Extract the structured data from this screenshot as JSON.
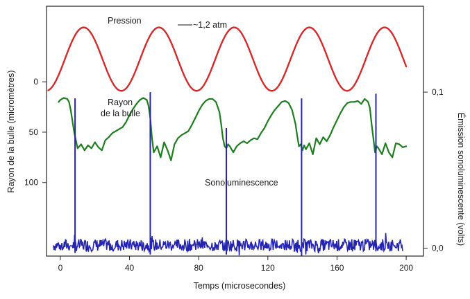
{
  "chart_data": {
    "type": "line",
    "title": "",
    "xlabel": "Temps (microsecondes)",
    "ylabel_left": "Rayon de la bulle (micromètres)",
    "ylabel_right": "Émission sonoluminescente (volts)",
    "x_ticks": [
      "0",
      "40",
      "80",
      "120",
      "160",
      "200"
    ],
    "y_left_ticks": [
      "0",
      "50",
      "100"
    ],
    "y_right_ticks": [
      "0,1",
      "0,0"
    ],
    "xlim": [
      -8,
      210
    ],
    "y_left_lim": [
      -75,
      173
    ],
    "y_right_lim": [
      -0.005,
      0.155
    ],
    "grid": false,
    "annotations": {
      "pressure_label": "Pression",
      "amplitude_label": "~1,2 atm",
      "radius_label_line1": "Rayon",
      "radius_label_line2": "de la bulle",
      "sono_label": "Sonoluminescence"
    },
    "series": [
      {
        "color": "#d42a2a",
        "period_us": 43.5,
        "x_start": -7,
        "x_end": 200,
        "peak_t": 13.5,
        "peak_left_units": -54,
        "trough_left_units": 9
      },
      {
        "color": "#1e7d1e",
        "x": [
          -1,
          0,
          2,
          4,
          5,
          6,
          8,
          10,
          12,
          14,
          16,
          18,
          20,
          22,
          24,
          26,
          28,
          30,
          32,
          34,
          36,
          38,
          40,
          42,
          44,
          46,
          48,
          50,
          51,
          52,
          53,
          54,
          56,
          58,
          60,
          62,
          64,
          66,
          68,
          70,
          72,
          74,
          76,
          78,
          80,
          82,
          84,
          86,
          88,
          90,
          92,
          93,
          94,
          95,
          96,
          97,
          98,
          100,
          102,
          104,
          106,
          108,
          110,
          112,
          114,
          116,
          118,
          120,
          122,
          124,
          126,
          128,
          130,
          132,
          134,
          136,
          137,
          138,
          139,
          140,
          141,
          142,
          144,
          146,
          148,
          150,
          152,
          154,
          156,
          158,
          160,
          162,
          164,
          166,
          168,
          170,
          172,
          174,
          176,
          178,
          179,
          180,
          181,
          182,
          183,
          184,
          186,
          188,
          190,
          192,
          194,
          196,
          198,
          200
        ],
        "y": [
          20,
          18,
          16,
          17,
          20,
          28,
          50,
          66,
          62,
          68,
          63,
          66,
          60,
          65,
          68,
          58,
          55,
          51,
          49,
          47,
          45,
          40,
          33,
          27,
          22,
          18,
          16,
          18,
          24,
          36,
          56,
          70,
          64,
          75,
          60,
          68,
          78,
          62,
          56,
          53,
          51,
          49,
          43,
          36,
          29,
          23,
          19,
          17,
          17,
          20,
          30,
          42,
          56,
          64,
          66,
          62,
          64,
          70,
          64,
          61,
          59,
          61,
          58,
          56,
          57,
          51,
          46,
          39,
          33,
          28,
          24,
          20,
          19,
          21,
          28,
          42,
          54,
          64,
          62,
          68,
          63,
          67,
          61,
          72,
          56,
          62,
          55,
          59,
          53,
          45,
          38,
          31,
          25,
          21,
          20,
          20,
          19,
          22,
          17,
          20,
          26,
          42,
          56,
          70,
          64,
          66,
          72,
          61,
          70,
          75,
          61,
          62,
          65,
          64
        ]
      },
      {
        "color": "#2424b0",
        "baseline_v": 0.002,
        "noise_amp_v": 0.004,
        "x_start": -4,
        "x_end": 198,
        "spikes": [
          {
            "x": 8.5,
            "peak_v": 0.096,
            "dip_v": -0.003
          },
          {
            "x": 52,
            "peak_v": 0.1,
            "dip_v": -0.004
          },
          {
            "x": 96,
            "peak_v": 0.077,
            "dip_v": -0.004
          },
          {
            "x": 139.5,
            "peak_v": 0.096,
            "dip_v": -0.005
          },
          {
            "x": 182.5,
            "peak_v": 0.099,
            "dip_v": -0.002
          }
        ]
      }
    ]
  }
}
